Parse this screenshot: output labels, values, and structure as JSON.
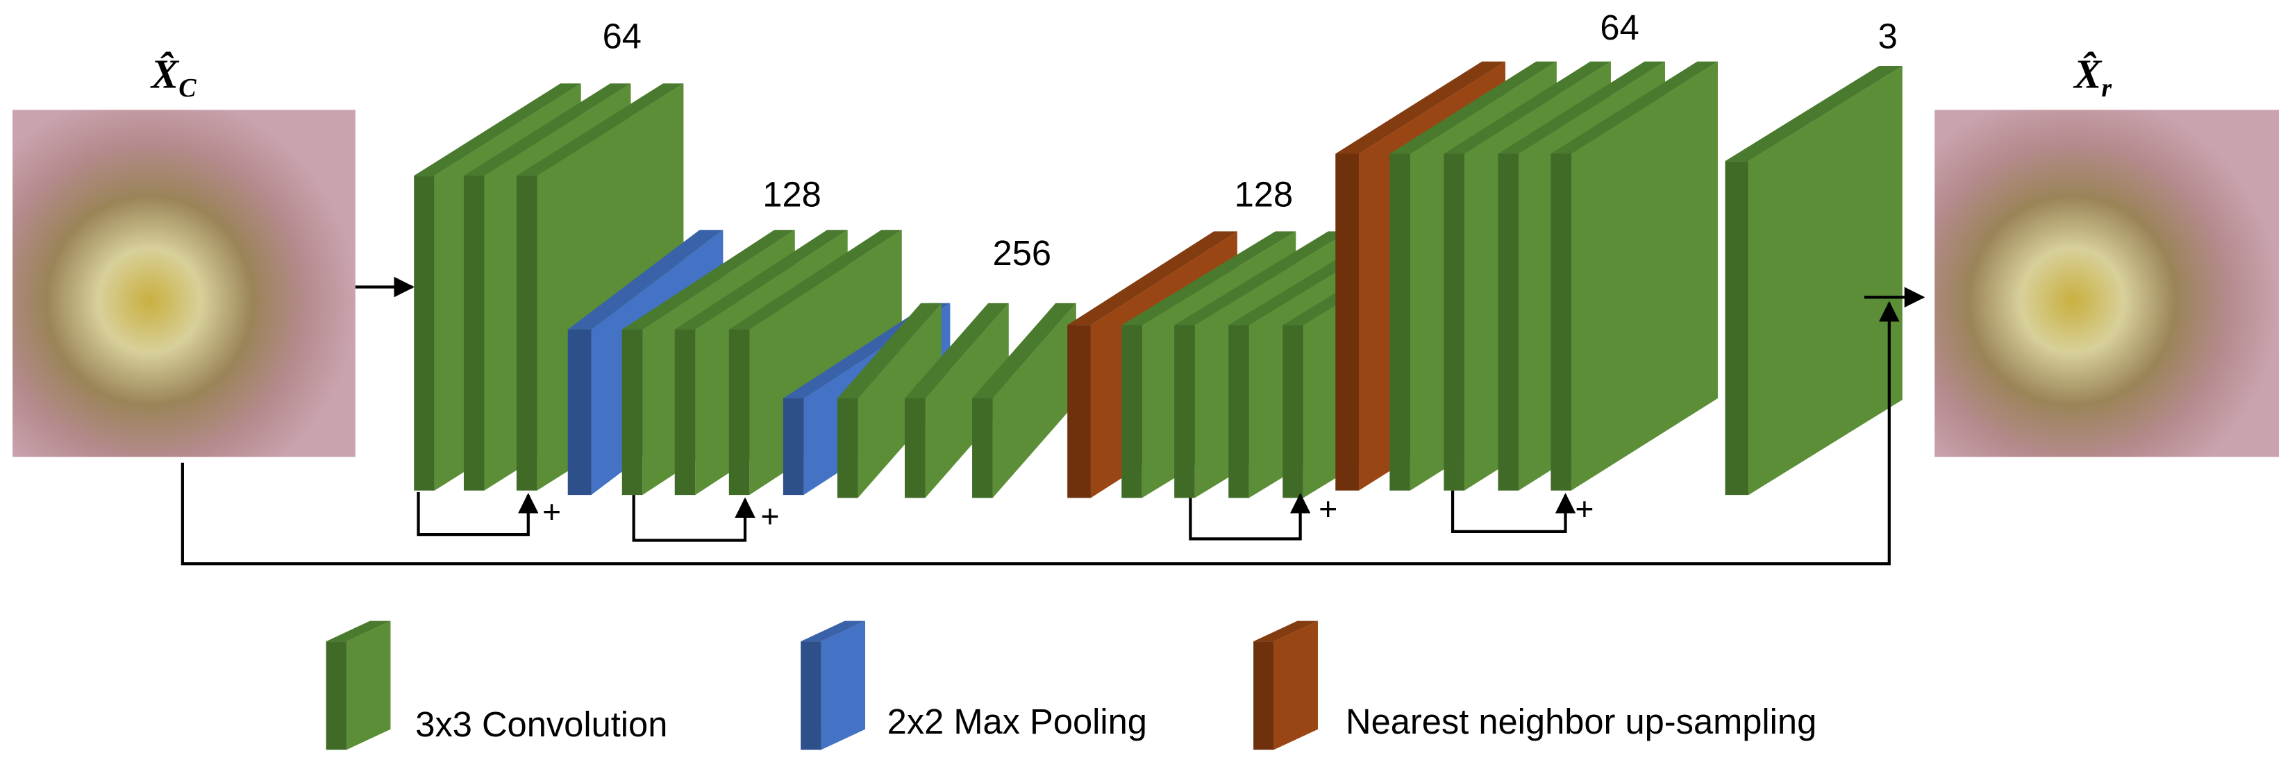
{
  "input": {
    "label": "X̂",
    "subscript": "C"
  },
  "output": {
    "label": "X̂",
    "subscript": "r"
  },
  "channels": [
    "64",
    "128",
    "256",
    "128",
    "64",
    "3"
  ],
  "skip_signs": [
    "+",
    "+",
    "+",
    "+"
  ],
  "legend": [
    "3x3 Convolution",
    "2x2 Max Pooling",
    "Nearest neighbor up-sampling"
  ]
}
